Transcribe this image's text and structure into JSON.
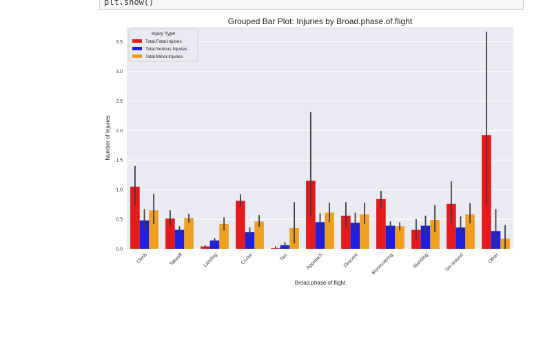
{
  "code_cell": {
    "text": "plt.show()"
  },
  "chart_data": {
    "type": "bar",
    "title": "Grouped Bar Plot: Injuries by Broad.phase.of.flight",
    "xlabel": "Broad.phase.of.flight",
    "ylabel": "Number of Injuries",
    "ylim": [
      0,
      3.75
    ],
    "yticks": [
      "0.0",
      "0.5",
      "1.0",
      "1.5",
      "2.0",
      "2.5",
      "3.0",
      "3.5"
    ],
    "grid": true,
    "legend": {
      "title": "Injury Type",
      "placement": "top-left"
    },
    "categories": [
      "Climb",
      "Takeoff",
      "Landing",
      "Cruise",
      "Taxi",
      "Approach",
      "Descent",
      "Maneuvering",
      "Standing",
      "Go-around",
      "Other"
    ],
    "series": [
      {
        "name": "Total.Fatal.Injuries",
        "color": "#e41a1c",
        "values": [
          1.05,
          0.51,
          0.04,
          0.81,
          0.01,
          1.15,
          0.56,
          0.84,
          0.32,
          0.76,
          1.92
        ],
        "err_low": [
          0.73,
          0.38,
          0.02,
          0.71,
          0.0,
          0.55,
          0.37,
          0.7,
          0.16,
          0.44,
          0.75
        ],
        "err_high": [
          1.4,
          0.65,
          0.06,
          0.92,
          0.04,
          2.31,
          0.79,
          0.98,
          0.5,
          1.14,
          3.67
        ]
      },
      {
        "name": "Total.Serious.Injuries",
        "color": "#1f1fe0",
        "values": [
          0.48,
          0.32,
          0.14,
          0.28,
          0.06,
          0.45,
          0.44,
          0.39,
          0.39,
          0.36,
          0.3
        ],
        "err_low": [
          0.31,
          0.25,
          0.1,
          0.2,
          0.02,
          0.28,
          0.31,
          0.33,
          0.24,
          0.24,
          0.0
        ],
        "err_high": [
          0.67,
          0.38,
          0.18,
          0.36,
          0.11,
          0.6,
          0.61,
          0.46,
          0.56,
          0.55,
          0.67
        ]
      },
      {
        "name": "Total.Minor.Injuries",
        "color": "#f0a020",
        "values": [
          0.65,
          0.52,
          0.42,
          0.46,
          0.35,
          0.61,
          0.58,
          0.38,
          0.49,
          0.58,
          0.17
        ],
        "err_low": [
          0.42,
          0.44,
          0.31,
          0.37,
          0.09,
          0.45,
          0.42,
          0.31,
          0.28,
          0.43,
          0.0
        ],
        "err_high": [
          0.93,
          0.59,
          0.53,
          0.57,
          0.79,
          0.78,
          0.78,
          0.45,
          0.74,
          0.77,
          0.4
        ]
      }
    ]
  }
}
